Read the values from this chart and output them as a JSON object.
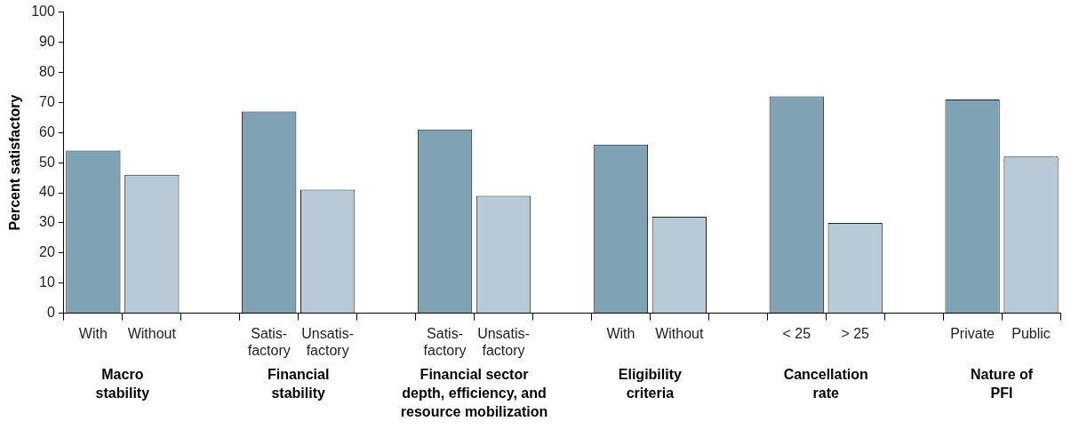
{
  "chart_data": {
    "type": "bar",
    "ylabel": "Percent satisfactory",
    "categories": [
      "With",
      "Without",
      null,
      "Satis-\nfactory",
      "Unsatis-\nfactory",
      null,
      "Satis-\nfactory",
      "Unsatis-\nfactory",
      null,
      "With",
      "Without",
      null,
      "< 25",
      "> 25",
      null,
      "Private",
      "Public"
    ],
    "values": [
      54,
      46,
      null,
      67,
      41,
      null,
      61,
      39,
      null,
      56,
      32,
      null,
      72,
      30,
      null,
      71,
      52
    ],
    "colors": [
      "#7fa3b5",
      "#b7cad6",
      null,
      "#7fa3b5",
      "#b7cad6",
      null,
      "#7fa3b5",
      "#b7cad6",
      null,
      "#7fa3b5",
      "#b7cad6",
      null,
      "#7fa3b5",
      "#b7cad6",
      null,
      "#7fa3b5",
      "#b7cad6"
    ],
    "ylim": [
      0,
      100
    ],
    "yticks": [
      0,
      10,
      20,
      30,
      40,
      50,
      60,
      70,
      80,
      90,
      100
    ],
    "grid": false,
    "legend": false,
    "annotations": [
      "Macro\nstability",
      "Financial\nstability",
      "Financial sector\ndepth, efficiency, and\nresource mobilization",
      "Eligibility\ncriteria",
      "Cancellation\nrate",
      "Nature of\nPFI"
    ]
  }
}
